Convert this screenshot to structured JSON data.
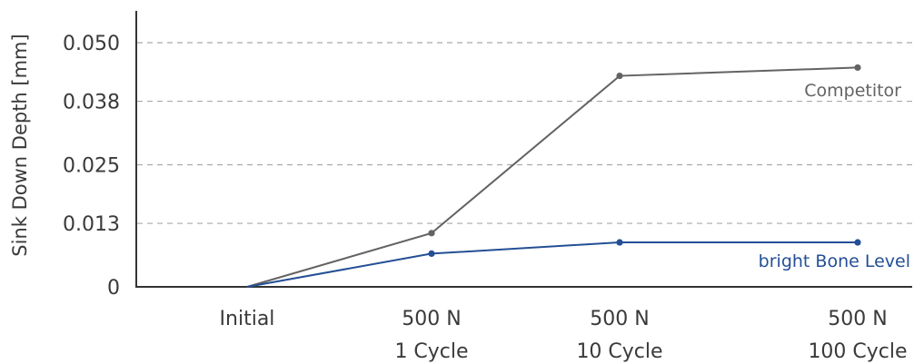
{
  "chart_data": {
    "type": "line",
    "ylabel": "Sink Down Depth [mm]",
    "categories": [
      [
        "Initial"
      ],
      [
        "500 N",
        "1 Cycle"
      ],
      [
        "500 N",
        "10 Cycle"
      ],
      [
        "500 N",
        "100 Cycle"
      ]
    ],
    "ylim": [
      0,
      0.0565
    ],
    "yticks": [
      0,
      0.013,
      0.025,
      0.038,
      0.05
    ],
    "ytick_labels": [
      "0",
      "0.013",
      "0.025",
      "0.038",
      "0.050"
    ],
    "grid": "horizontal-dashed",
    "series": [
      {
        "name": "Competitor",
        "color": "#636363",
        "values": [
          0,
          0.011,
          0.0432,
          0.0449
        ]
      },
      {
        "name": "bright Bone Level",
        "color": "#244f96",
        "values": [
          0,
          0.0068,
          0.0091,
          0.0091
        ]
      }
    ]
  }
}
